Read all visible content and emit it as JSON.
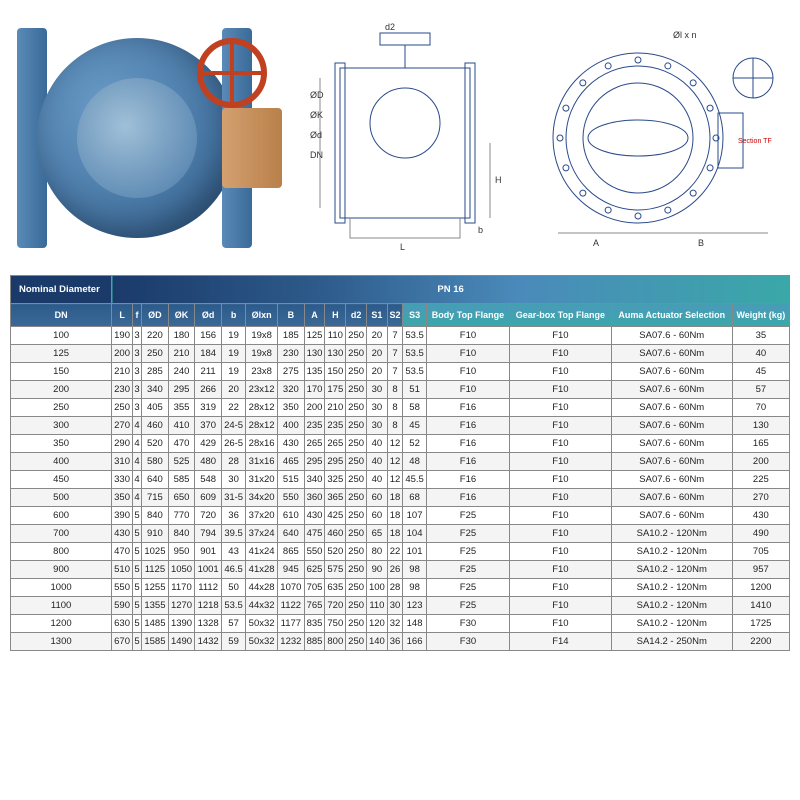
{
  "diagram": {
    "side_labels": [
      "d2",
      "ØD",
      "ØK",
      "Ød",
      "DN",
      "L",
      "b",
      "H"
    ],
    "front_labels": [
      "Øl x n",
      "A",
      "B",
      "Section TF"
    ]
  },
  "table": {
    "header_row1": {
      "left": "Nominal Diameter",
      "right": "PN 16"
    },
    "columns": [
      "DN",
      "L",
      "f",
      "ØD",
      "ØK",
      "Ød",
      "b",
      "Ølxn",
      "B",
      "A",
      "H",
      "d2",
      "S1",
      "S2",
      "S3",
      "Body Top Flange",
      "Gear-box Top Flange",
      "Auma Actuator Selection",
      "Weight (kg)"
    ],
    "rows": [
      [
        "100",
        "190",
        "3",
        "220",
        "180",
        "156",
        "19",
        "19x8",
        "185",
        "125",
        "110",
        "250",
        "20",
        "7",
        "53.5",
        "F10",
        "F10",
        "SA07.6 - 60Nm",
        "35"
      ],
      [
        "125",
        "200",
        "3",
        "250",
        "210",
        "184",
        "19",
        "19x8",
        "230",
        "130",
        "130",
        "250",
        "20",
        "7",
        "53.5",
        "F10",
        "F10",
        "SA07.6 - 60Nm",
        "40"
      ],
      [
        "150",
        "210",
        "3",
        "285",
        "240",
        "211",
        "19",
        "23x8",
        "275",
        "135",
        "150",
        "250",
        "20",
        "7",
        "53.5",
        "F10",
        "F10",
        "SA07.6 - 60Nm",
        "45"
      ],
      [
        "200",
        "230",
        "3",
        "340",
        "295",
        "266",
        "20",
        "23x12",
        "320",
        "170",
        "175",
        "250",
        "30",
        "8",
        "51",
        "F10",
        "F10",
        "SA07.6 - 60Nm",
        "57"
      ],
      [
        "250",
        "250",
        "3",
        "405",
        "355",
        "319",
        "22",
        "28x12",
        "350",
        "200",
        "210",
        "250",
        "30",
        "8",
        "58",
        "F16",
        "F10",
        "SA07.6 - 60Nm",
        "70"
      ],
      [
        "300",
        "270",
        "4",
        "460",
        "410",
        "370",
        "24-5",
        "28x12",
        "400",
        "235",
        "235",
        "250",
        "30",
        "8",
        "45",
        "F16",
        "F10",
        "SA07.6 - 60Nm",
        "130"
      ],
      [
        "350",
        "290",
        "4",
        "520",
        "470",
        "429",
        "26-5",
        "28x16",
        "430",
        "265",
        "265",
        "250",
        "40",
        "12",
        "52",
        "F16",
        "F10",
        "SA07.6 - 60Nm",
        "165"
      ],
      [
        "400",
        "310",
        "4",
        "580",
        "525",
        "480",
        "28",
        "31x16",
        "465",
        "295",
        "295",
        "250",
        "40",
        "12",
        "48",
        "F16",
        "F10",
        "SA07.6 - 60Nm",
        "200"
      ],
      [
        "450",
        "330",
        "4",
        "640",
        "585",
        "548",
        "30",
        "31x20",
        "515",
        "340",
        "325",
        "250",
        "40",
        "12",
        "45.5",
        "F16",
        "F10",
        "SA07.6 - 60Nm",
        "225"
      ],
      [
        "500",
        "350",
        "4",
        "715",
        "650",
        "609",
        "31-5",
        "34x20",
        "550",
        "360",
        "365",
        "250",
        "60",
        "18",
        "68",
        "F16",
        "F10",
        "SA07.6 - 60Nm",
        "270"
      ],
      [
        "600",
        "390",
        "5",
        "840",
        "770",
        "720",
        "36",
        "37x20",
        "610",
        "430",
        "425",
        "250",
        "60",
        "18",
        "107",
        "F25",
        "F10",
        "SA07.6 - 60Nm",
        "430"
      ],
      [
        "700",
        "430",
        "5",
        "910",
        "840",
        "794",
        "39.5",
        "37x24",
        "640",
        "475",
        "460",
        "250",
        "65",
        "18",
        "104",
        "F25",
        "F10",
        "SA10.2 - 120Nm",
        "490"
      ],
      [
        "800",
        "470",
        "5",
        "1025",
        "950",
        "901",
        "43",
        "41x24",
        "865",
        "550",
        "520",
        "250",
        "80",
        "22",
        "101",
        "F25",
        "F10",
        "SA10.2 - 120Nm",
        "705"
      ],
      [
        "900",
        "510",
        "5",
        "1125",
        "1050",
        "1001",
        "46.5",
        "41x28",
        "945",
        "625",
        "575",
        "250",
        "90",
        "26",
        "98",
        "F25",
        "F10",
        "SA10.2 - 120Nm",
        "957"
      ],
      [
        "1000",
        "550",
        "5",
        "1255",
        "1170",
        "1112",
        "50",
        "44x28",
        "1070",
        "705",
        "635",
        "250",
        "100",
        "28",
        "98",
        "F25",
        "F10",
        "SA10.2 - 120Nm",
        "1200"
      ],
      [
        "1100",
        "590",
        "5",
        "1355",
        "1270",
        "1218",
        "53.5",
        "44x32",
        "1122",
        "765",
        "720",
        "250",
        "110",
        "30",
        "123",
        "F25",
        "F10",
        "SA10.2 - 120Nm",
        "1410"
      ],
      [
        "1200",
        "630",
        "5",
        "1485",
        "1390",
        "1328",
        "57",
        "50x32",
        "1177",
        "835",
        "750",
        "250",
        "120",
        "32",
        "148",
        "F30",
        "F10",
        "SA10.2 - 120Nm",
        "1725"
      ],
      [
        "1300",
        "670",
        "5",
        "1585",
        "1490",
        "1432",
        "59",
        "50x32",
        "1232",
        "885",
        "800",
        "250",
        "140",
        "36",
        "166",
        "F30",
        "F14",
        "SA14.2 - 250Nm",
        "2200"
      ]
    ],
    "styling": {
      "header_bg": "#1a3a6a",
      "gradient_colors": [
        "#1a3a6a",
        "#2d5a8a",
        "#4a8aba",
        "#3aa8a8"
      ],
      "border_color": "#888888",
      "row_alt_bg": "#f4f4f4",
      "font_size_header": 9,
      "font_size_body": 9.5,
      "text_color": "#222222"
    }
  }
}
